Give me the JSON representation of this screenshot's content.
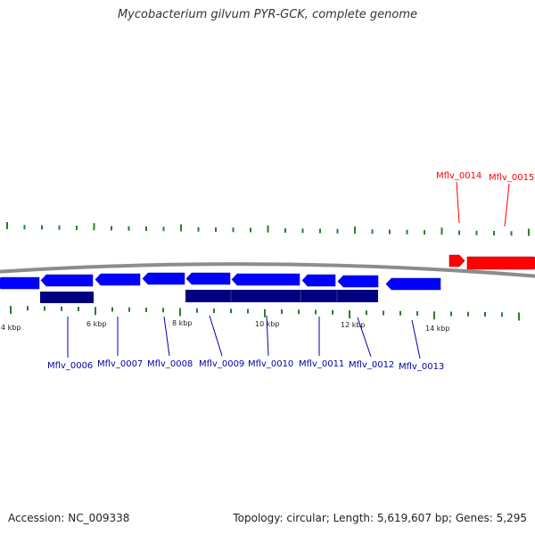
{
  "title": "Mycobacterium gilvum PYR-GCK, complete genome",
  "footer": {
    "accession": "Accession: NC_009338",
    "summary": "Topology: circular; Length: 5,619,607 bp; Genes: 5,295"
  },
  "colors": {
    "cds_forward": "#ff0000",
    "cds_reverse": "#0000ff",
    "gene_track": "#000080",
    "tick": "#2a7f2a",
    "backbone": "#8c8c8c",
    "label_forward": "#ff0000",
    "label_reverse": "#0000aa"
  },
  "scale_labels": [
    "4 kbp",
    "6 kbp",
    "8 kbp",
    "10 kbp",
    "12 kbp",
    "14 kbp"
  ],
  "gene_labels_bottom": [
    "Mflv_0006",
    "Mflv_0007",
    "Mflv_0008",
    "Mflv_0009",
    "Mflv_0010",
    "Mflv_0011",
    "Mflv_0012",
    "Mflv_0013"
  ],
  "gene_labels_top": [
    "Mflv_0014",
    "Mflv_0015"
  ]
}
